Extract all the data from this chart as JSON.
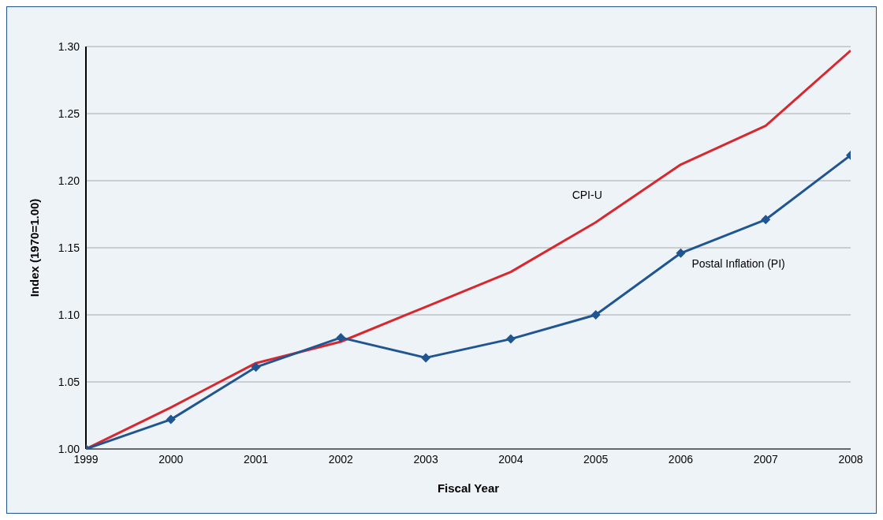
{
  "chart_data": {
    "type": "line",
    "xlabel": "Fiscal Year",
    "ylabel": "Index (1970=1.00)",
    "x": [
      1999,
      2000,
      2001,
      2002,
      2003,
      2004,
      2005,
      2006,
      2007,
      2008
    ],
    "xlim": [
      1999,
      2008
    ],
    "xticks": [
      1999,
      2000,
      2001,
      2002,
      2003,
      2004,
      2005,
      2006,
      2007,
      2008
    ],
    "ylim": [
      1,
      1.3
    ],
    "yticks": [
      {
        "value": 1,
        "label": "1.00"
      },
      {
        "value": 1.05,
        "label": "1.05"
      },
      {
        "value": 1.1,
        "label": "1.10"
      },
      {
        "value": 1.15,
        "label": "1.15"
      },
      {
        "value": 1.2,
        "label": "1.20"
      },
      {
        "value": 1.25,
        "label": "1.25"
      },
      {
        "value": 1.3,
        "label": "1.30"
      }
    ],
    "grid": "y",
    "legend": false,
    "series": [
      {
        "name": "CPI-U",
        "color": "#d7282f",
        "marker": "none",
        "values": [
          1.0,
          1.031,
          1.064,
          1.08,
          1.106,
          1.132,
          1.169,
          1.212,
          1.241,
          1.297
        ]
      },
      {
        "name": "Postal Inflation (PI)",
        "color": "#1f5591",
        "marker": "diamond",
        "values": [
          1.0,
          1.022,
          1.061,
          1.083,
          1.068,
          1.082,
          1.1,
          1.146,
          1.171,
          1.219
        ]
      }
    ]
  }
}
